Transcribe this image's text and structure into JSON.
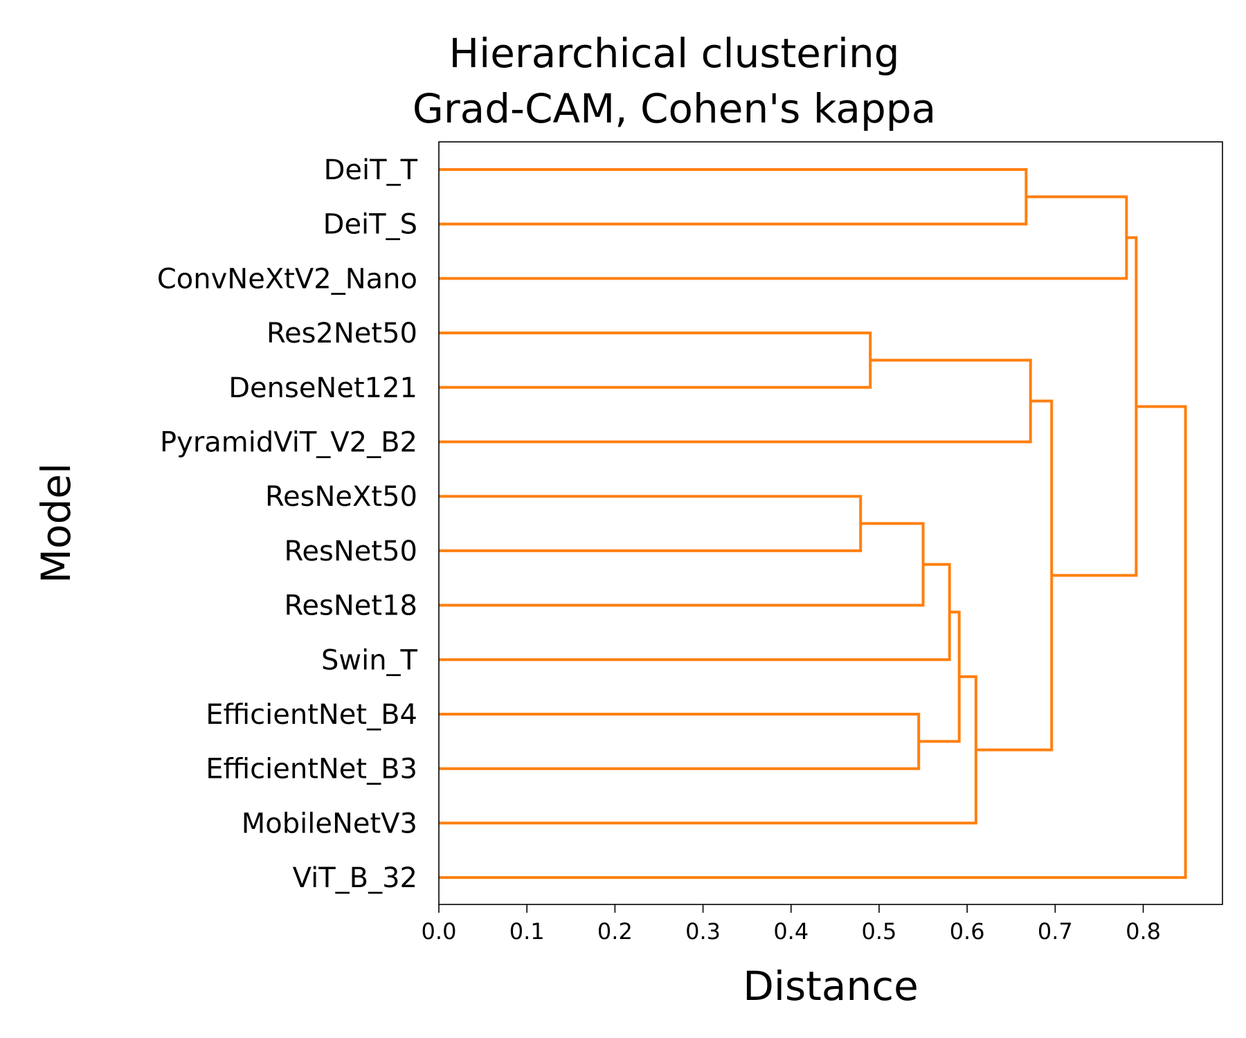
{
  "chart_data": {
    "type": "dendrogram",
    "title": [
      "Hierarchical clustering",
      "Grad-CAM, Cohen's kappa"
    ],
    "xlabel": "Distance",
    "ylabel": "Model",
    "xlim": [
      0.0,
      0.89
    ],
    "xticks": [
      0.0,
      0.1,
      0.2,
      0.3,
      0.4,
      0.5,
      0.6,
      0.7,
      0.8
    ],
    "xtick_labels": [
      "0.0",
      "0.1",
      "0.2",
      "0.3",
      "0.4",
      "0.5",
      "0.6",
      "0.7",
      "0.8"
    ],
    "link_color": "#ff7f0e",
    "grid": false,
    "leaves": [
      "DeiT_T",
      "DeiT_S",
      "ConvNeXtV2_Nano",
      "Res2Net50",
      "DenseNet121",
      "PyramidViT_V2_B2",
      "ResNeXt50",
      "ResNet50",
      "ResNet18",
      "Swin_T",
      "EfficientNet_B4",
      "EfficientNet_B3",
      "MobileNetV3",
      "ViT_B_32"
    ],
    "merges": [
      {
        "a": "DeiT_T",
        "b": "DeiT_S",
        "distance": 0.667
      },
      {
        "a": 0,
        "b": "ConvNeXtV2_Nano",
        "distance": 0.781
      },
      {
        "a": "Res2Net50",
        "b": "DenseNet121",
        "distance": 0.49
      },
      {
        "a": 2,
        "b": "PyramidViT_V2_B2",
        "distance": 0.672
      },
      {
        "a": "ResNeXt50",
        "b": "ResNet50",
        "distance": 0.479
      },
      {
        "a": 4,
        "b": "ResNet18",
        "distance": 0.55
      },
      {
        "a": 5,
        "b": "Swin_T",
        "distance": 0.58
      },
      {
        "a": "EfficientNet_B4",
        "b": "EfficientNet_B3",
        "distance": 0.545
      },
      {
        "a": 6,
        "b": 7,
        "distance": 0.591
      },
      {
        "a": 8,
        "b": "MobileNetV3",
        "distance": 0.61
      },
      {
        "a": 3,
        "b": 9,
        "distance": 0.696
      },
      {
        "a": 1,
        "b": 10,
        "distance": 0.792
      },
      {
        "a": 11,
        "b": "ViT_B_32",
        "distance": 0.848
      }
    ]
  }
}
